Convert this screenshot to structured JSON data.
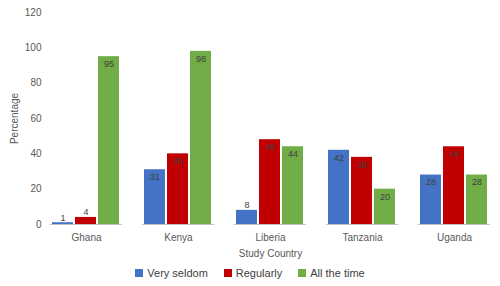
{
  "chart_data": {
    "type": "bar",
    "x_label": "Study Country",
    "y_label": "Percentage",
    "categories": [
      "Ghana",
      "Kenya",
      "Liberia",
      "Tanzania",
      "Uganda"
    ],
    "series": [
      {
        "name": "Very seldom",
        "color": "#4472c4",
        "values": [
          1,
          31,
          8,
          42,
          28
        ]
      },
      {
        "name": "Regularly",
        "color": "#c00000",
        "values": [
          4,
          40,
          48,
          38,
          44
        ]
      },
      {
        "name": "All the time",
        "color": "#70ad47",
        "values": [
          95,
          98,
          44,
          20,
          28
        ]
      }
    ],
    "ylim": [
      0,
      120
    ],
    "yticks": [
      0,
      20,
      40,
      60,
      80,
      100,
      120
    ],
    "grid": false,
    "data_labels": true,
    "legend": "bottom"
  }
}
